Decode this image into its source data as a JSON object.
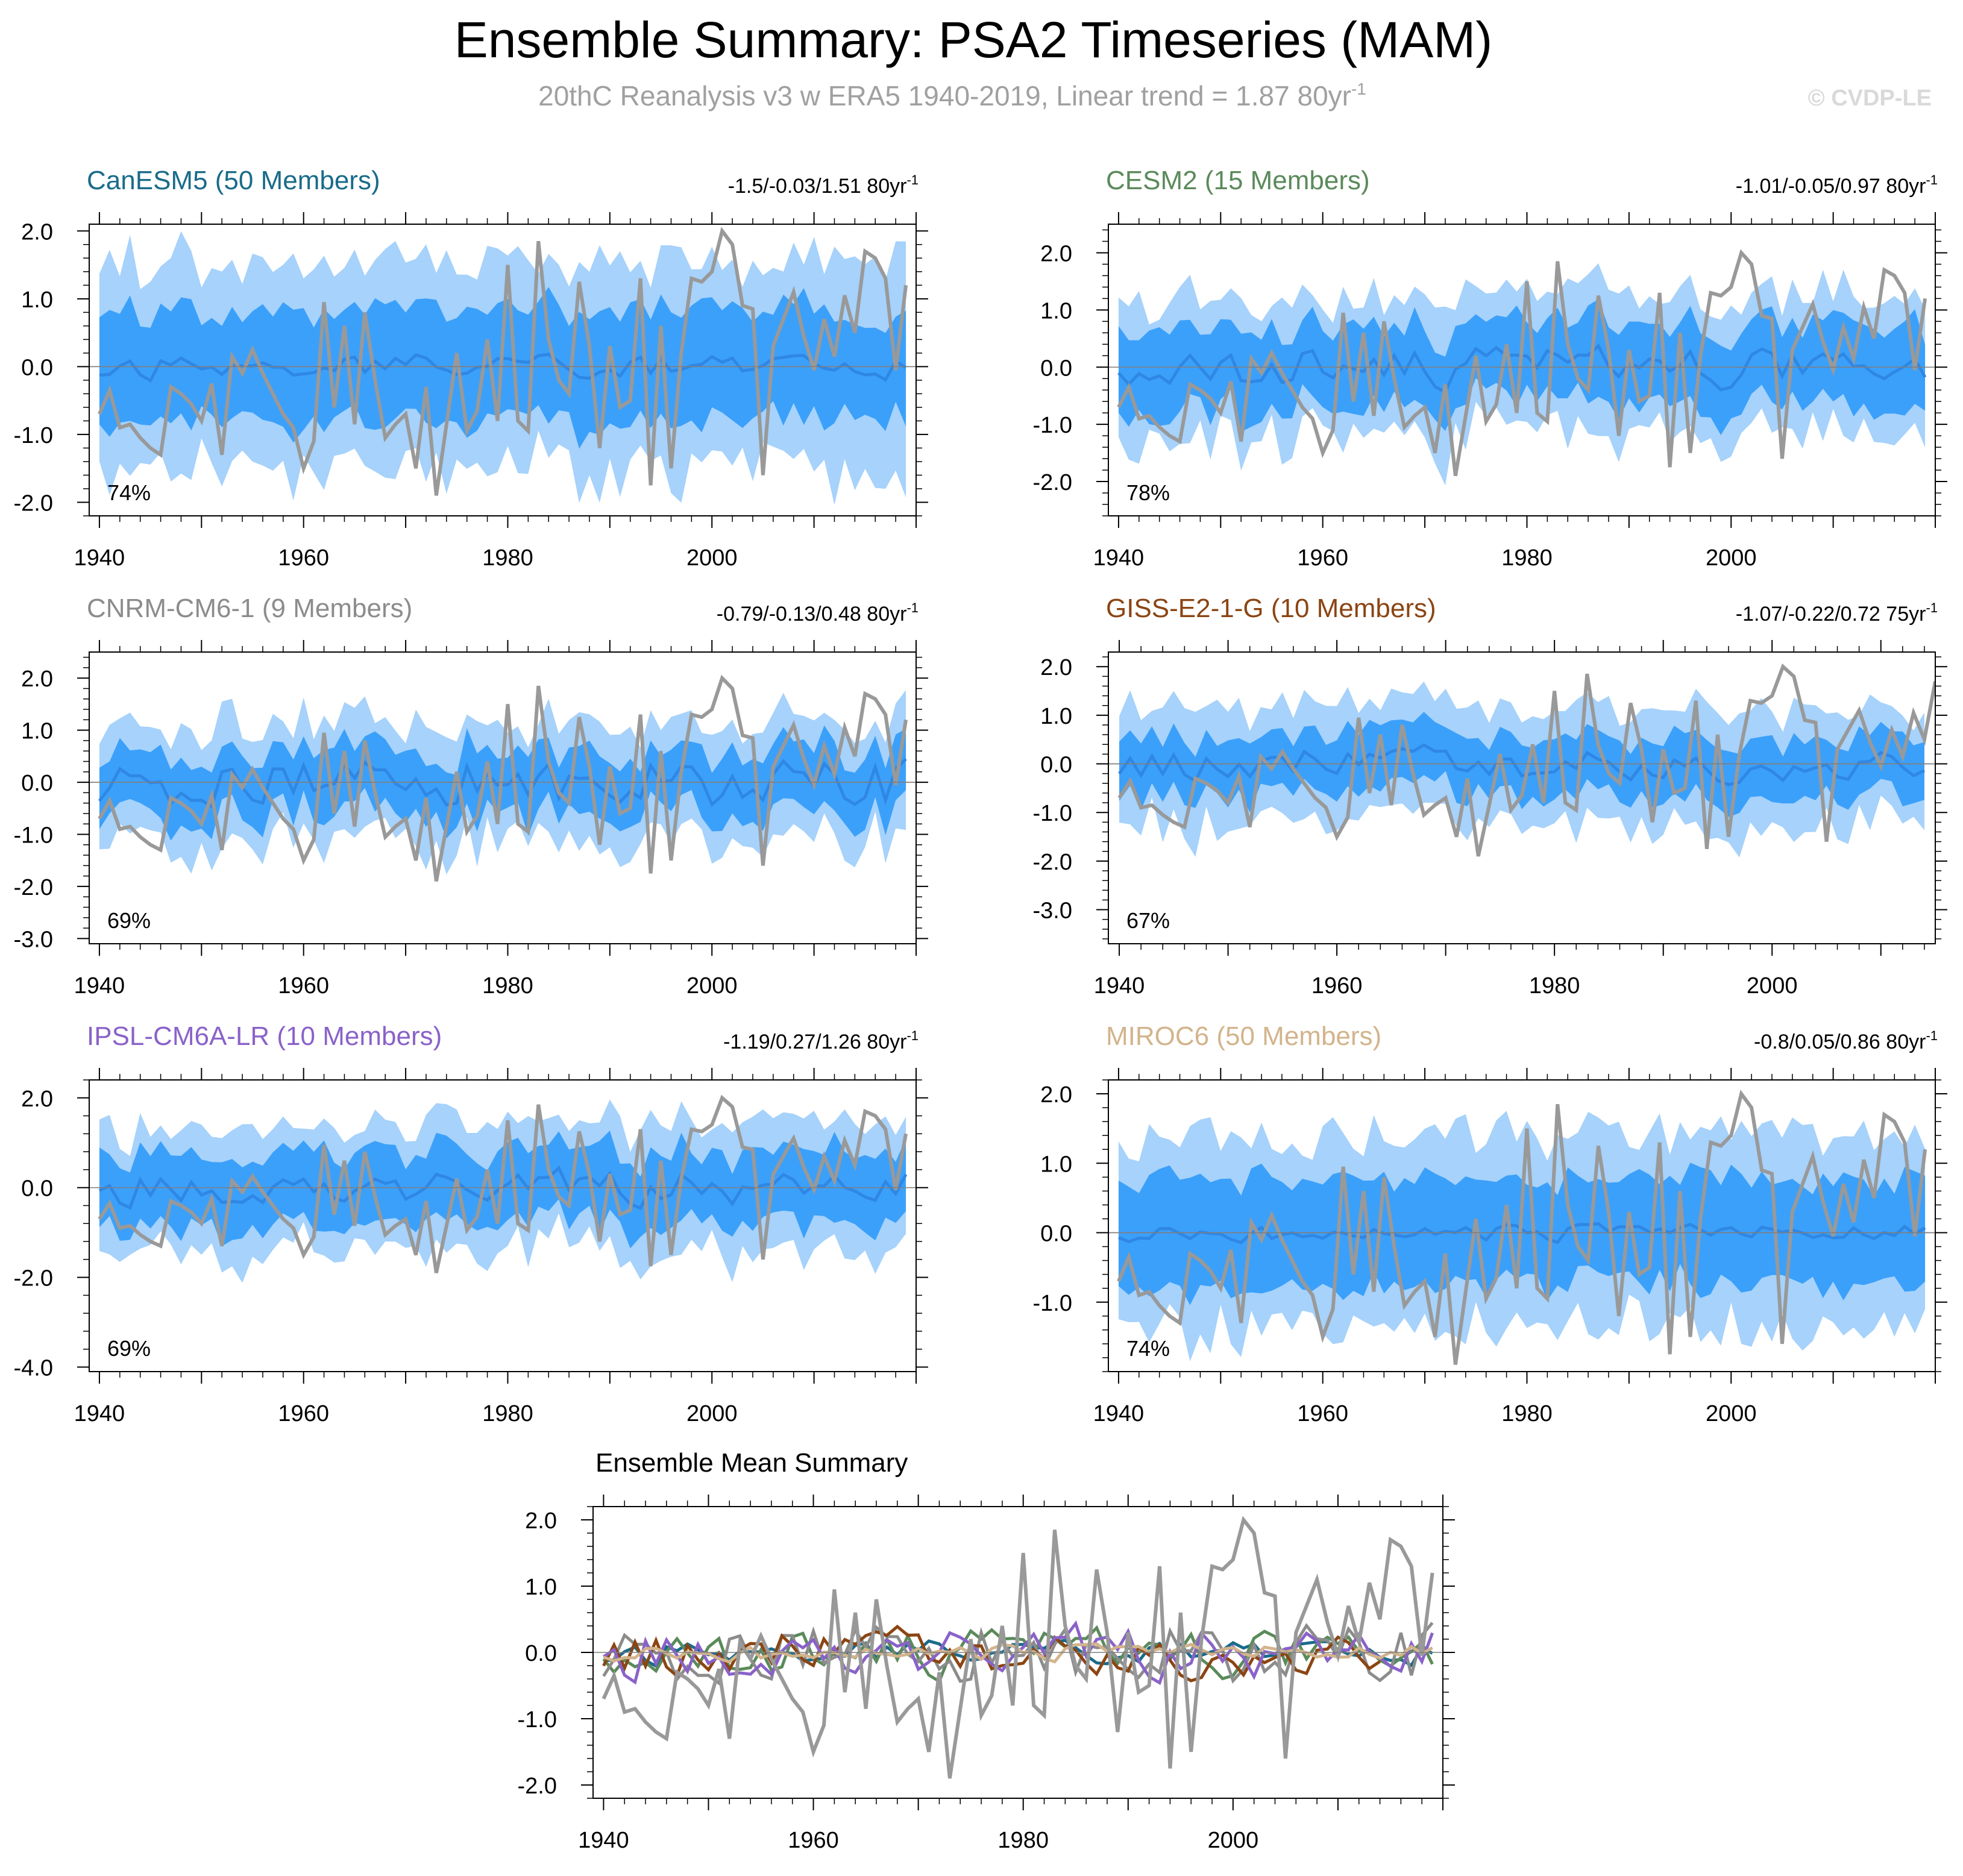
{
  "title": "Ensemble Summary: PSA2 Timeseries (MAM)",
  "subtitle": "20thC Reanalysis v3 w ERA5 1940-2019, Linear trend = 1.87 80yr",
  "subtitle_sup": "-1",
  "watermark": "© CVDP-LE",
  "colors": {
    "title": "#000000",
    "subtitle": "#a0a0a0",
    "watermark": "#d9d9d9",
    "band_outer": "#a6d2fb",
    "band_inner": "#3ba0fa",
    "mean_line": "#2f87e4",
    "obs_line": "#999999",
    "zero_line": "#7f7f7f",
    "axis": "#000000"
  },
  "chart_data": [
    {
      "type": "line",
      "name": "CanESM5",
      "title": "CanESM5 (50 Members)",
      "title_color": "#1a6b8a",
      "trend_label": "-1.5/-0.03/1.51 80yr",
      "trend_sup": "-1",
      "percent": "74%",
      "ylim": [
        -2.2,
        2.1
      ],
      "xlim": [
        1939,
        2020
      ],
      "yticks": [
        -2.0,
        -1.0,
        0.0,
        1.0,
        2.0
      ],
      "ytick_labels": [
        "-2.0",
        "-1.0",
        "0.0",
        "1.0",
        "2.0"
      ],
      "xticks": [
        1940,
        1960,
        1980,
        2000
      ],
      "xtick_labels": [
        "1940",
        "1960",
        "1980",
        "2000"
      ],
      "x_end": 2019,
      "seed": 11,
      "mean_amp": 0.18,
      "inner_half": 0.8,
      "outer_half": 1.5
    },
    {
      "type": "line",
      "name": "CESM2",
      "title": "CESM2 (15 Members)",
      "title_color": "#5b8a5b",
      "trend_label": "-1.01/-0.05/0.97 80yr",
      "trend_sup": "-1",
      "percent": "78%",
      "ylim": [
        -2.6,
        2.5
      ],
      "xlim": [
        1939,
        2020
      ],
      "yticks": [
        -2.0,
        -1.0,
        0.0,
        1.0,
        2.0
      ],
      "ytick_labels": [
        "-2.0",
        "-1.0",
        "0.0",
        "1.0",
        "2.0"
      ],
      "xticks": [
        1940,
        1960,
        1980,
        2000
      ],
      "xtick_labels": [
        "1940",
        "1960",
        "1980",
        "2000"
      ],
      "x_end": 2019,
      "seed": 23,
      "mean_amp": 0.35,
      "inner_half": 0.7,
      "outer_half": 1.2
    },
    {
      "type": "line",
      "name": "CNRM-CM6-1",
      "title": "CNRM-CM6-1 (9 Members)",
      "title_color": "#8c8c8c",
      "trend_label": "-0.79/-0.13/0.48 80yr",
      "trend_sup": "-1",
      "percent": "69%",
      "ylim": [
        -3.1,
        2.5
      ],
      "xlim": [
        1939,
        2020
      ],
      "yticks": [
        -3.0,
        -2.0,
        -1.0,
        0.0,
        1.0,
        2.0
      ],
      "ytick_labels": [
        "-3.0",
        "-2.0",
        "-1.0",
        "0.0",
        "1.0",
        "2.0"
      ],
      "xticks": [
        1940,
        1960,
        1980,
        2000
      ],
      "xtick_labels": [
        "1940",
        "1960",
        "1980",
        "2000"
      ],
      "x_end": 2019,
      "seed": 37,
      "mean_amp": 0.5,
      "inner_half": 0.6,
      "outer_half": 1.1
    },
    {
      "type": "line",
      "name": "GISS-E2-1-G",
      "title": "GISS-E2-1-G (10 Members)",
      "title_color": "#8b4513",
      "trend_label": "-1.07/-0.22/0.72 75yr",
      "trend_sup": "-1",
      "percent": "67%",
      "ylim": [
        -3.7,
        2.3
      ],
      "xlim": [
        1939,
        2015
      ],
      "yticks": [
        -3.0,
        -2.0,
        -1.0,
        0.0,
        1.0,
        2.0
      ],
      "ytick_labels": [
        "-3.0",
        "-2.0",
        "-1.0",
        "0.0",
        "1.0",
        "2.0"
      ],
      "xticks": [
        1940,
        1960,
        1980,
        2000
      ],
      "xtick_labels": [
        "1940",
        "1960",
        "1980",
        "2000"
      ],
      "x_end": 2014,
      "seed": 41,
      "mean_amp": 0.35,
      "inner_half": 0.6,
      "outer_half": 1.15
    },
    {
      "type": "line",
      "name": "IPSL-CM6A-LR",
      "title": "IPSL-CM6A-LR (10 Members)",
      "title_color": "#8a62c9",
      "trend_label": "-1.19/0.27/1.26 80yr",
      "trend_sup": "-1",
      "percent": "69%",
      "ylim": [
        -4.1,
        2.4
      ],
      "xlim": [
        1939,
        2020
      ],
      "yticks": [
        -4.0,
        -2.0,
        0.0,
        2.0
      ],
      "ytick_labels": [
        "-4.0",
        "-2.0",
        "0.0",
        "2.0"
      ],
      "xticks": [
        1940,
        1960,
        1980,
        2000
      ],
      "xtick_labels": [
        "1940",
        "1960",
        "1980",
        "2000"
      ],
      "x_end": 2019,
      "seed": 53,
      "mean_amp": 0.4,
      "inner_half": 0.8,
      "outer_half": 1.4
    },
    {
      "type": "line",
      "name": "MIROC6",
      "title": "MIROC6 (50 Members)",
      "title_color": "#d2b48c",
      "trend_label": "-0.8/0.05/0.86 80yr",
      "trend_sup": "-1",
      "percent": "74%",
      "ylim": [
        -2.0,
        2.2
      ],
      "xlim": [
        1939,
        2020
      ],
      "yticks": [
        -1.0,
        0.0,
        1.0,
        2.0
      ],
      "ytick_labels": [
        "-1.0",
        "0.0",
        "1.0",
        "2.0"
      ],
      "xticks": [
        1940,
        1960,
        1980,
        2000
      ],
      "xtick_labels": [
        "1940",
        "1960",
        "1980",
        "2000"
      ],
      "x_end": 2019,
      "seed": 67,
      "mean_amp": 0.12,
      "inner_half": 0.75,
      "outer_half": 1.35
    },
    {
      "type": "line",
      "name": "Ensemble Mean Summary",
      "title": "Ensemble Mean Summary",
      "title_color": "#000000",
      "ylim": [
        -2.2,
        2.2
      ],
      "xlim": [
        1939,
        2020
      ],
      "yticks": [
        -2.0,
        -1.0,
        0.0,
        1.0,
        2.0
      ],
      "ytick_labels": [
        "-2.0",
        "-1.0",
        "0.0",
        "1.0",
        "2.0"
      ],
      "xticks": [
        1940,
        1960,
        1980,
        2000
      ],
      "xtick_labels": [
        "1940",
        "1960",
        "1980",
        "2000"
      ],
      "series": [
        {
          "name": "CanESM5",
          "color": "#1a6b8a",
          "x_end": 2019,
          "seed": 11,
          "amp": 0.18
        },
        {
          "name": "CESM2",
          "color": "#5b8a5b",
          "x_end": 2019,
          "seed": 23,
          "amp": 0.35
        },
        {
          "name": "CNRM-CM6-1",
          "color": "#8c8c8c",
          "x_end": 2019,
          "seed": 37,
          "amp": 0.5
        },
        {
          "name": "GISS-E2-1-G",
          "color": "#8b4513",
          "x_end": 2014,
          "seed": 41,
          "amp": 0.35
        },
        {
          "name": "IPSL-CM6A-LR",
          "color": "#8a62c9",
          "x_end": 2019,
          "seed": 53,
          "amp": 0.4
        },
        {
          "name": "MIROC6",
          "color": "#d2b48c",
          "x_end": 2019,
          "seed": 67,
          "amp": 0.12
        }
      ]
    }
  ],
  "observations": {
    "name": "20thC Reanalysis v3 w ERA5",
    "x_start": 1940,
    "values": [
      -0.7,
      -0.35,
      -0.9,
      -0.85,
      -1.05,
      -1.2,
      -1.3,
      -0.3,
      -0.4,
      -0.55,
      -0.8,
      -0.25,
      -1.3,
      0.15,
      -0.1,
      0.25,
      -0.1,
      -0.4,
      -0.7,
      -0.9,
      -1.5,
      -1.1,
      0.95,
      -0.6,
      0.6,
      -0.85,
      0.8,
      -0.2,
      -1.05,
      -0.85,
      -0.7,
      -1.5,
      -0.3,
      -1.9,
      -0.85,
      0.2,
      -0.95,
      -0.65,
      0.4,
      -0.8,
      1.5,
      -0.8,
      -0.95,
      1.85,
      0.4,
      -0.2,
      -0.4,
      1.25,
      0.3,
      -1.2,
      0.3,
      -0.6,
      -0.5,
      1.3,
      -1.75,
      0.6,
      -1.5,
      0.2,
      1.3,
      1.25,
      1.4,
      2.0,
      1.8,
      0.9,
      0.85,
      -1.6,
      0.3,
      0.7,
      1.1,
      0.45,
      -0.05,
      0.7,
      0.15,
      1.05,
      0.5,
      1.7,
      1.6,
      1.3,
      -0.05,
      1.2
    ]
  }
}
